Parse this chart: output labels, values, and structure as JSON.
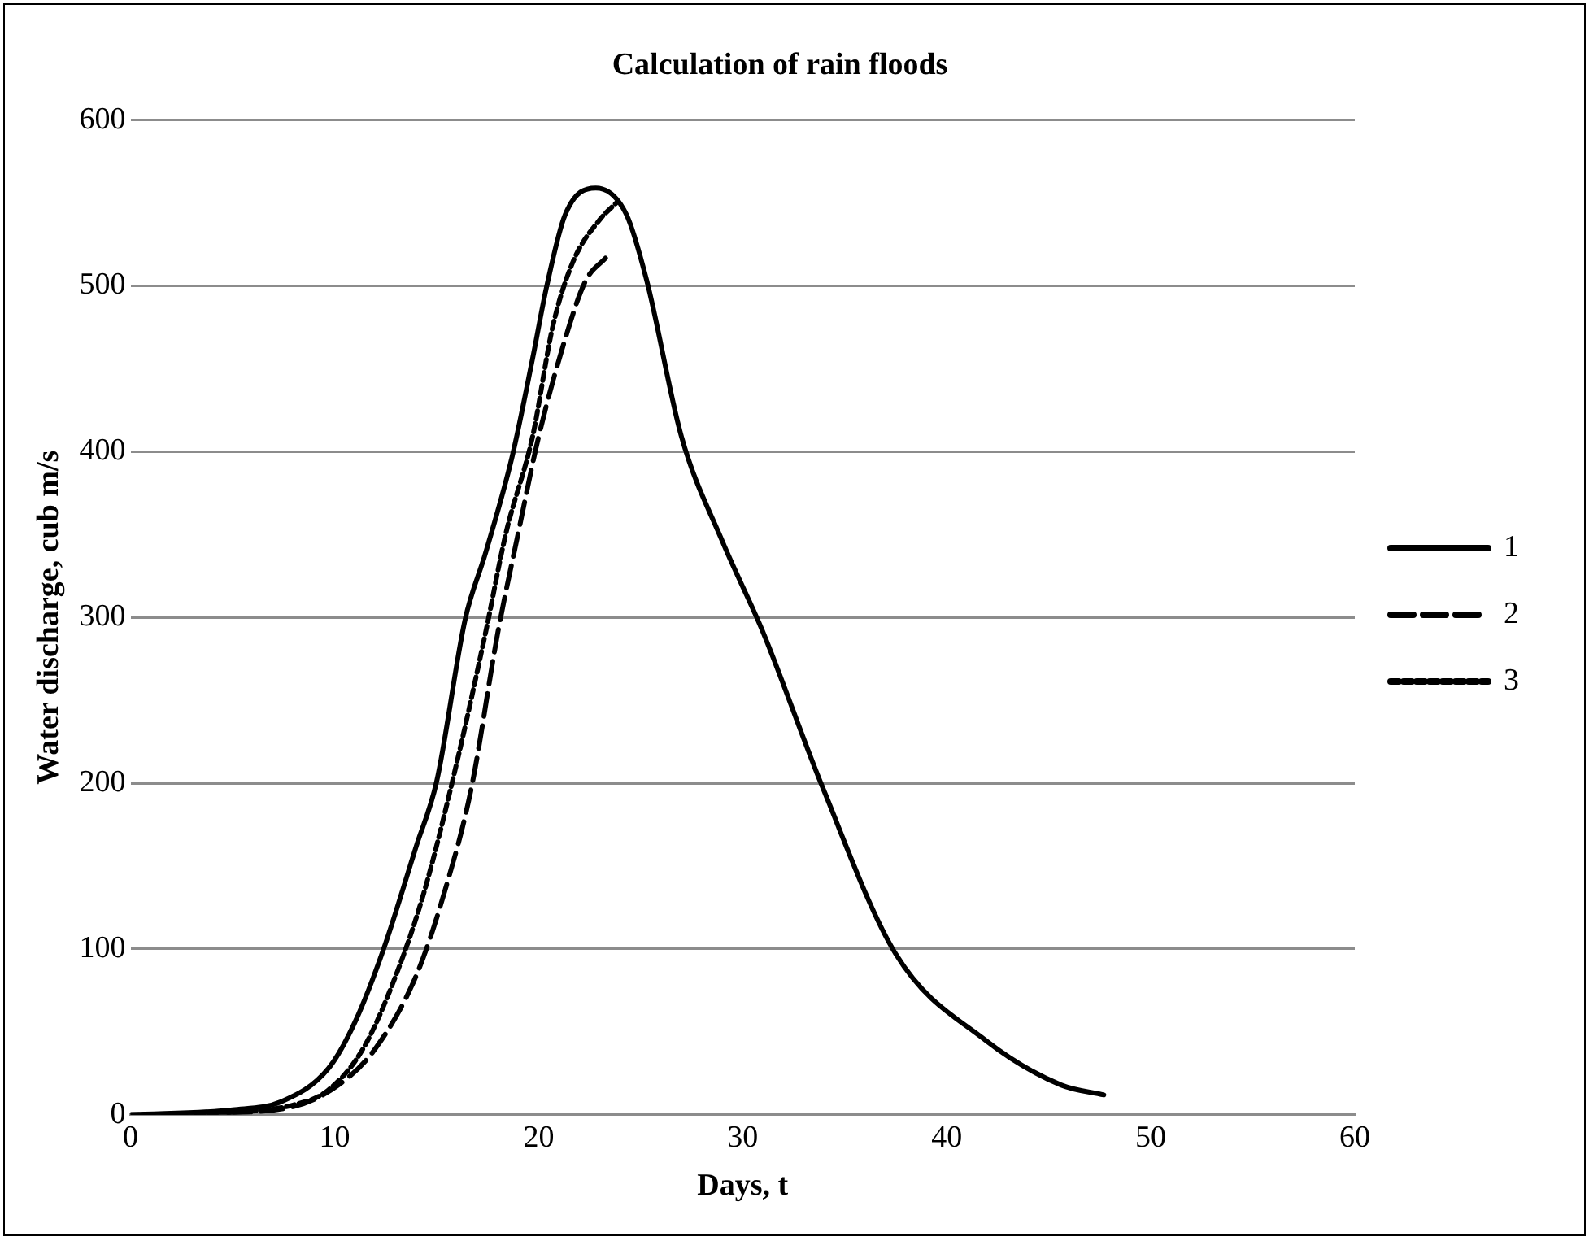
{
  "chart_data": {
    "type": "line",
    "title": "Calculation of rain floods",
    "xlabel": "Days, t",
    "ylabel": "Water discharge, cub m/s",
    "xlim": [
      0,
      60
    ],
    "xticks": [
      0,
      10,
      20,
      30,
      40,
      50,
      60
    ],
    "ylim": [
      0,
      600
    ],
    "yticks": [
      0,
      100,
      200,
      300,
      400,
      500,
      600
    ],
    "grid": "y",
    "legend": "right",
    "marker": "none",
    "series": [
      {
        "name": "1",
        "color": "#000000",
        "line_style": "solid",
        "x": [
          0,
          5,
          7.4,
          9.7,
          11,
          12.4,
          14,
          15,
          16.4,
          17.4,
          18.7,
          19.7,
          20.4,
          21.3,
          22.8,
          24.3,
          25.3,
          27,
          29,
          31,
          33.9,
          37.5,
          41.9,
          45.6,
          47.7
        ],
        "values": [
          0,
          3,
          8,
          28,
          56,
          100,
          162,
          201,
          299,
          339,
          397,
          456,
          500,
          543,
          559,
          543,
          503,
          409,
          346,
          291,
          198,
          97,
          45,
          18,
          12
        ]
      },
      {
        "name": "2",
        "color": "#000000",
        "line_style": "dashed",
        "x": [
          0,
          4,
          8,
          10.3,
          12,
          14,
          15.4,
          16.7,
          18,
          19,
          20,
          21.3,
          22.3,
          23.3
        ],
        "values": [
          0,
          1,
          5,
          19,
          40,
          84,
          135,
          197,
          291,
          351,
          409,
          468,
          503,
          517
        ]
      },
      {
        "name": "3",
        "color": "#000000",
        "line_style": "dotted",
        "x": [
          0,
          4,
          8,
          9.7,
          11.4,
          13,
          14.4,
          16,
          17.4,
          18.4,
          19.7,
          20.7,
          21.7,
          23,
          23.8
        ],
        "values": [
          0,
          1,
          6,
          15,
          40,
          84,
          135,
          213,
          291,
          351,
          409,
          476,
          515,
          540,
          550
        ]
      }
    ]
  }
}
